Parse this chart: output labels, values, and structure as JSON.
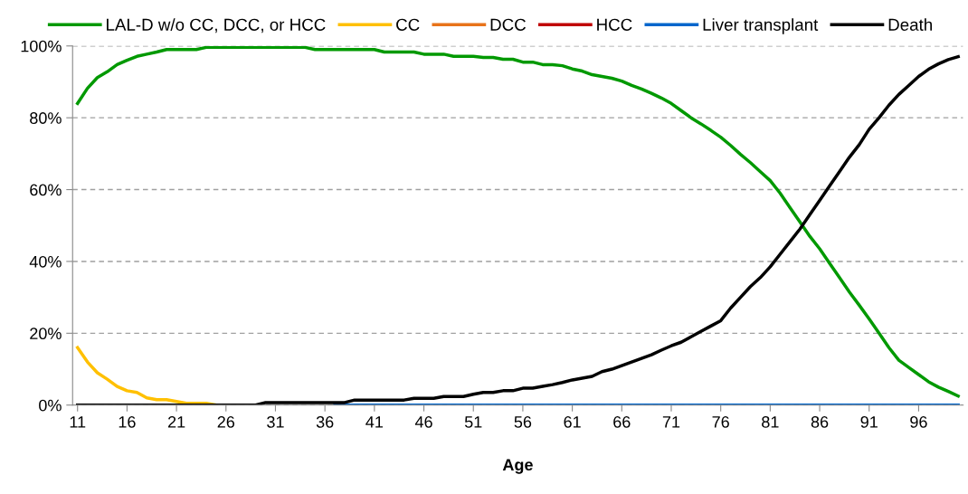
{
  "chart_data": {
    "type": "line",
    "xlabel": "Age",
    "categories": [
      "11",
      null,
      null,
      null,
      null,
      "16",
      null,
      null,
      null,
      null,
      "21",
      null,
      null,
      null,
      null,
      "26",
      null,
      null,
      null,
      null,
      "31",
      null,
      null,
      null,
      null,
      "36",
      null,
      null,
      null,
      null,
      "41",
      null,
      null,
      null,
      null,
      "46",
      null,
      null,
      null,
      null,
      "51",
      null,
      null,
      null,
      null,
      "56",
      null,
      null,
      null,
      null,
      "61",
      null,
      null,
      null,
      null,
      "66",
      null,
      null,
      null,
      null,
      "71",
      null,
      null,
      null,
      null,
      "76",
      null,
      null,
      null,
      null,
      "81",
      null,
      null,
      null,
      null,
      "86",
      null,
      null,
      null,
      null,
      "91",
      null,
      null,
      null,
      null,
      "96",
      null,
      null,
      null,
      null
    ],
    "ylim": [
      0,
      100
    ],
    "yticks": [
      {
        "value": 0,
        "label": "0%"
      },
      {
        "value": 20,
        "label": "20%"
      },
      {
        "value": 40,
        "label": "40%"
      },
      {
        "value": 60,
        "label": "60%"
      },
      {
        "value": 80,
        "label": "80%"
      },
      {
        "value": 100,
        "label": "100%"
      }
    ],
    "grid": "y",
    "legend": "top",
    "line_style": "solid",
    "marker": "none",
    "series": [
      {
        "name": "LAL-D w/o CC, DCC, or HCC",
        "color": "#009900",
        "values": [
          84,
          88.2,
          91.2,
          92.8,
          94.8,
          96,
          97.1,
          97.7,
          98.3,
          99,
          99,
          99,
          99,
          99.6,
          99.6,
          99.6,
          99.6,
          99.6,
          99.6,
          99.6,
          99.6,
          99.6,
          99.6,
          99.6,
          99,
          99,
          99,
          99,
          99,
          99,
          99,
          98.3,
          98.3,
          98.3,
          98.3,
          97.7,
          97.7,
          97.7,
          97.1,
          97.1,
          97.1,
          96.8,
          96.8,
          96.3,
          96.3,
          95.5,
          95.5,
          94.8,
          94.8,
          94.5,
          93.6,
          93,
          92,
          91.5,
          91,
          90.2,
          89,
          88,
          86.8,
          85.5,
          84,
          82,
          80,
          78.3,
          76.5,
          74.6,
          72.3,
          69.8,
          67.5,
          65,
          62.5,
          59,
          55,
          51,
          47,
          43.5,
          39.5,
          35.5,
          31.5,
          27.8,
          24,
          20,
          16,
          12.5,
          10.5,
          8.5,
          6.5,
          5,
          3.8,
          2.5
        ]
      },
      {
        "name": "CC",
        "color": "#ffc000",
        "values": [
          16,
          12,
          9,
          7.2,
          5.2,
          4,
          3.5,
          2,
          1.5,
          1.5,
          1,
          0.5,
          0.5,
          0.5,
          0,
          null,
          null,
          null,
          null,
          null,
          null,
          null,
          null,
          null,
          null,
          null,
          null,
          null,
          null,
          null,
          null,
          null,
          null,
          null,
          null,
          null,
          null,
          null,
          null,
          null,
          null,
          null,
          null,
          null,
          null,
          null,
          null,
          null,
          null,
          null,
          null,
          null,
          null,
          null,
          null,
          null,
          null,
          null,
          null,
          null,
          null,
          null,
          null,
          null,
          null,
          null,
          null,
          null,
          null,
          null,
          null,
          null,
          null,
          null,
          null,
          null,
          null,
          null,
          null,
          null,
          null,
          null,
          null,
          null,
          null,
          null,
          null,
          null,
          null,
          null
        ]
      },
      {
        "name": "DCC",
        "color": "#e8731a",
        "values": [
          null,
          null,
          null,
          null,
          null,
          null,
          null,
          null,
          null,
          null,
          null,
          null,
          null,
          null,
          null,
          null,
          null,
          null,
          null,
          null,
          null,
          null,
          null,
          null,
          null,
          null,
          null,
          null,
          null,
          null,
          null,
          null,
          null,
          null,
          null,
          null,
          null,
          null,
          null,
          null,
          null,
          null,
          null,
          null,
          null,
          null,
          null,
          null,
          null,
          null,
          null,
          null,
          null,
          null,
          null,
          null,
          null,
          null,
          null,
          null,
          null,
          null,
          null,
          null,
          null,
          null,
          null,
          null,
          null,
          null,
          null,
          null,
          null,
          null,
          null,
          null,
          null,
          null,
          null,
          null,
          null,
          null,
          null,
          null,
          null,
          null,
          null,
          null,
          null,
          null
        ]
      },
      {
        "name": "HCC",
        "color": "#c00000",
        "values": [
          null,
          null,
          null,
          null,
          null,
          null,
          null,
          null,
          null,
          null,
          null,
          null,
          null,
          null,
          null,
          null,
          null,
          null,
          null,
          null,
          null,
          null,
          null,
          null,
          null,
          null,
          null,
          null,
          null,
          null,
          null,
          null,
          null,
          null,
          null,
          null,
          null,
          null,
          null,
          null,
          null,
          null,
          null,
          null,
          null,
          null,
          null,
          null,
          null,
          null,
          null,
          null,
          null,
          null,
          null,
          null,
          null,
          null,
          null,
          null,
          null,
          null,
          null,
          null,
          null,
          null,
          null,
          null,
          null,
          null,
          null,
          null,
          null,
          null,
          null,
          null,
          null,
          null,
          null,
          null,
          null,
          null,
          null,
          null,
          null,
          null,
          null,
          null,
          null,
          null
        ]
      },
      {
        "name": "Liver transplant",
        "color": "#0066cc",
        "values": [
          null,
          null,
          null,
          null,
          null,
          null,
          null,
          null,
          null,
          null,
          null,
          null,
          null,
          null,
          null,
          null,
          null,
          null,
          null,
          null,
          null,
          null,
          null,
          null,
          null,
          null,
          0,
          0,
          0,
          0,
          0,
          0,
          0,
          0,
          0,
          0,
          0,
          0,
          0,
          0,
          0,
          0,
          0,
          0,
          0,
          0,
          0,
          0,
          0,
          0,
          0,
          0,
          0,
          0,
          0,
          0,
          0,
          0,
          0,
          0,
          0,
          0,
          0,
          0,
          0,
          0,
          0,
          0,
          0,
          0,
          0,
          0,
          0,
          0,
          0,
          0,
          0,
          0,
          0,
          0,
          0,
          0,
          0,
          0,
          0,
          0,
          0,
          0,
          0,
          0
        ]
      },
      {
        "name": "Death",
        "color": "#000000",
        "values": [
          0,
          0,
          0,
          0,
          0,
          0,
          0,
          0,
          0,
          0,
          0,
          0,
          0,
          0,
          0,
          0,
          0,
          0,
          0,
          0.7,
          0.7,
          0.7,
          0.7,
          0.7,
          0.7,
          0.7,
          0.7,
          0.7,
          1.4,
          1.4,
          1.4,
          1.4,
          1.4,
          1.4,
          1.9,
          1.9,
          1.9,
          2.4,
          2.4,
          2.4,
          3,
          3.5,
          3.5,
          4,
          4,
          4.7,
          4.7,
          5.2,
          5.7,
          6.3,
          7,
          7.5,
          8,
          9.3,
          10,
          11,
          12,
          13,
          14,
          15.3,
          16.5,
          17.5,
          19,
          20.5,
          22,
          23.5,
          27,
          30,
          33,
          35.5,
          38.5,
          42,
          45.5,
          49,
          53,
          57,
          61,
          65,
          69,
          72.5,
          76.8,
          80,
          83.5,
          86.5,
          89,
          91.5,
          93.5,
          95,
          96.2,
          97
        ]
      }
    ]
  }
}
